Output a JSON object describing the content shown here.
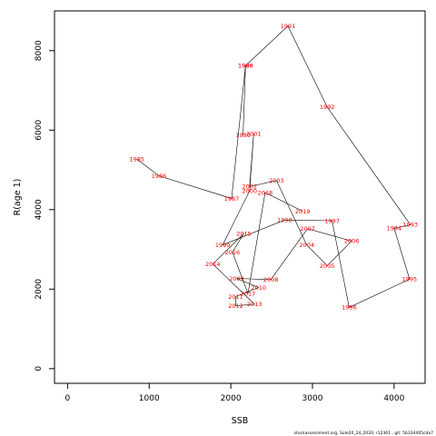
{
  "chart_data": {
    "type": "line",
    "xlabel": "SSB",
    "ylabel": "R(age 1)",
    "xlim": [
      -160,
      4380
    ],
    "ylim": [
      -370,
      9000
    ],
    "xticks": [
      0,
      1000,
      2000,
      3000,
      4000
    ],
    "yticks": [
      0,
      2000,
      4000,
      6000,
      8000
    ],
    "series": [
      {
        "points": [
          {
            "label": "1985",
            "x": 850,
            "y": 5270
          },
          {
            "label": "1986",
            "x": 1120,
            "y": 4850
          },
          {
            "label": "1987",
            "x": 2010,
            "y": 4280
          },
          {
            "label": "1988",
            "x": 2180,
            "y": 7620
          },
          {
            "label": "1989",
            "x": 2150,
            "y": 5880
          },
          {
            "label": "1990",
            "x": 2180,
            "y": 7620
          },
          {
            "label": "1991",
            "x": 2700,
            "y": 8620
          },
          {
            "label": "1992",
            "x": 3180,
            "y": 6580
          },
          {
            "label": "1993",
            "x": 4200,
            "y": 3620
          },
          {
            "label": "1994",
            "x": 4000,
            "y": 3530
          },
          {
            "label": "1995",
            "x": 4190,
            "y": 2250
          },
          {
            "label": "1996",
            "x": 3450,
            "y": 1540
          },
          {
            "label": "1997",
            "x": 3240,
            "y": 3720
          },
          {
            "label": "1998",
            "x": 2660,
            "y": 3740
          },
          {
            "label": "1999",
            "x": 1900,
            "y": 3110
          },
          {
            "label": "2000",
            "x": 2230,
            "y": 4470
          },
          {
            "label": "2001",
            "x": 2280,
            "y": 5910
          },
          {
            "label": "2002",
            "x": 2230,
            "y": 4580
          },
          {
            "label": "2003",
            "x": 2560,
            "y": 4730
          },
          {
            "label": "2004",
            "x": 2930,
            "y": 3110
          },
          {
            "label": "2005",
            "x": 3180,
            "y": 2590
          },
          {
            "label": "2006",
            "x": 3480,
            "y": 3210
          },
          {
            "label": "2007",
            "x": 2940,
            "y": 3520
          },
          {
            "label": "2008",
            "x": 2490,
            "y": 2240
          },
          {
            "label": "2009",
            "x": 2070,
            "y": 2270
          },
          {
            "label": "2010",
            "x": 2340,
            "y": 2040
          },
          {
            "label": "2011",
            "x": 2060,
            "y": 1810
          },
          {
            "label": "2012",
            "x": 2060,
            "y": 1580
          },
          {
            "label": "2013",
            "x": 2290,
            "y": 1620
          },
          {
            "label": "2014",
            "x": 1780,
            "y": 2630
          },
          {
            "label": "2015",
            "x": 2160,
            "y": 3400
          },
          {
            "label": "2016",
            "x": 2020,
            "y": 2930
          },
          {
            "label": "2017",
            "x": 2210,
            "y": 1890
          },
          {
            "label": "2018",
            "x": 2420,
            "y": 4430
          },
          {
            "label": "2019",
            "x": 2880,
            "y": 3960
          }
        ]
      }
    ],
    "footnote": "stockassessment.org,  Sole20_24_2020,  r12361 ,  git: 5b334405cda7"
  }
}
